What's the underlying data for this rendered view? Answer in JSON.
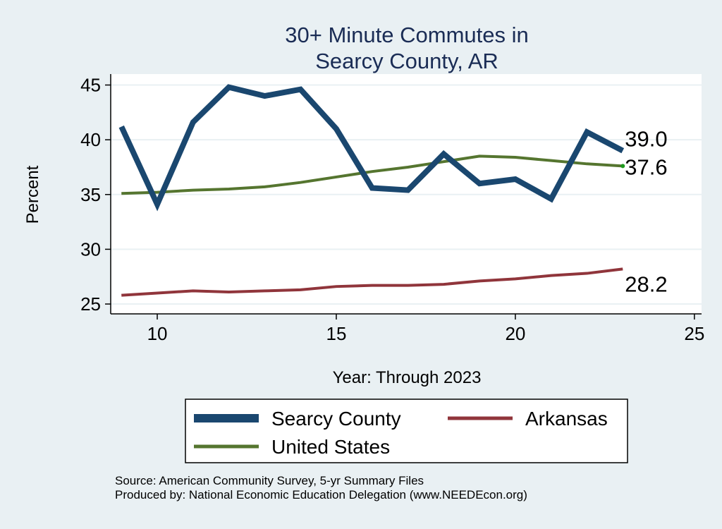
{
  "chart_data": {
    "type": "line",
    "title": [
      "30+ Minute Commutes in",
      "Searcy County, AR"
    ],
    "xlabel": "Year: Through 2023",
    "ylabel": "Percent",
    "xlim": [
      8.7,
      25.2
    ],
    "ylim": [
      24.1,
      46.0
    ],
    "xticks": [
      10,
      15,
      20,
      25
    ],
    "yticks": [
      25,
      30,
      35,
      40,
      45
    ],
    "grid": true,
    "legend_position": "bottom",
    "x": [
      9,
      10,
      11,
      12,
      13,
      14,
      15,
      16,
      17,
      18,
      19,
      20,
      21,
      22,
      23
    ],
    "series": [
      {
        "name": "Searcy County",
        "color": "#1a476f",
        "values": [
          41.2,
          34.1,
          41.6,
          44.8,
          44.0,
          44.6,
          41.0,
          35.6,
          35.4,
          38.7,
          36.0,
          36.4,
          34.6,
          40.7,
          39.0
        ],
        "end_label": "39.0"
      },
      {
        "name": "Arkansas",
        "color": "#90353b",
        "values": [
          25.8,
          26.0,
          26.2,
          26.1,
          26.2,
          26.3,
          26.6,
          26.7,
          26.7,
          26.8,
          27.1,
          27.3,
          27.6,
          27.8,
          28.2
        ],
        "end_label": "28.2"
      },
      {
        "name": "United States",
        "color": "#55752f",
        "values": [
          35.1,
          35.2,
          35.4,
          35.5,
          35.7,
          36.1,
          36.6,
          37.1,
          37.5,
          38.0,
          38.5,
          38.4,
          38.1,
          37.8,
          37.6
        ],
        "end_label": "37.6"
      }
    ],
    "legend": [
      "Searcy County",
      "Arkansas",
      "United States"
    ],
    "source_lines": [
      "Source: American Community Survey, 5-yr Summary Files",
      "Produced by: National Economic Education Delegation (www.NEEDEcon.org)"
    ]
  }
}
